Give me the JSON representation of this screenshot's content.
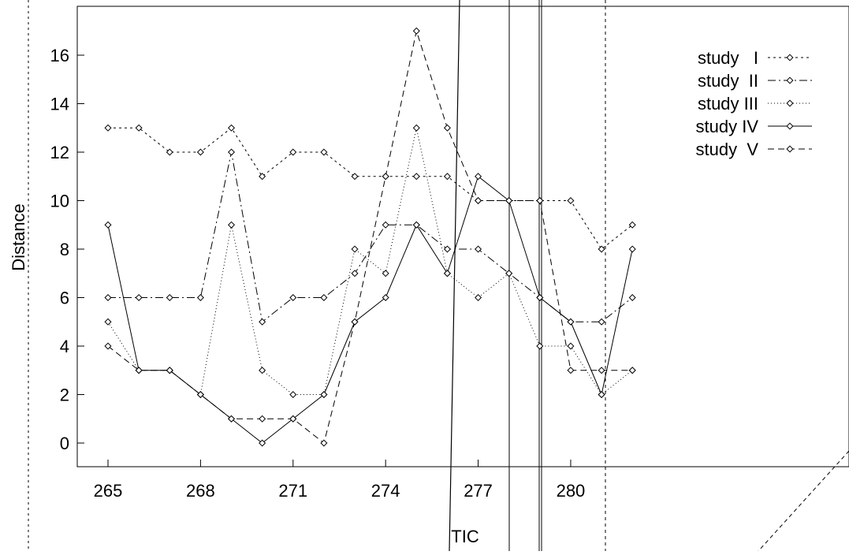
{
  "chart_data": {
    "type": "line",
    "title": "",
    "xlabel": "TIC",
    "ylabel": "Distance",
    "xlim": [
      263.8,
      285.6
    ],
    "ylim": [
      -1,
      18
    ],
    "x_ticks": [
      265,
      268,
      271,
      274,
      277,
      280
    ],
    "y_ticks": [
      0,
      2,
      4,
      6,
      8,
      10,
      12,
      14,
      16
    ],
    "grid": false,
    "legend_position": "top-right",
    "x": [
      265,
      266,
      267,
      268,
      269,
      270,
      271,
      272,
      273,
      274,
      275,
      276,
      277,
      278,
      279,
      280,
      281,
      282
    ],
    "series": [
      {
        "name": "study   I",
        "dash": "3,4",
        "values": [
          13,
          13,
          12,
          12,
          13,
          11,
          12,
          12,
          11,
          11,
          11,
          11,
          10,
          10,
          10,
          10,
          8,
          9
        ]
      },
      {
        "name": "study  II",
        "dash": "10,4,2,4",
        "values": [
          6,
          6,
          6,
          6,
          12,
          5,
          6,
          6,
          7,
          9,
          9,
          8,
          8,
          7,
          6,
          5,
          5,
          6
        ]
      },
      {
        "name": "study III",
        "dash": "1,3",
        "values": [
          5,
          3,
          3,
          2,
          9,
          3,
          2,
          2,
          8,
          7,
          13,
          7,
          6,
          7,
          4,
          4,
          2,
          3
        ]
      },
      {
        "name": "study IV",
        "dash": "",
        "values": [
          9,
          3,
          3,
          2,
          1,
          0,
          1,
          2,
          5,
          6,
          9,
          7,
          11,
          10,
          6,
          5,
          2,
          8
        ]
      },
      {
        "name": "study  V",
        "dash": "8,5",
        "values": [
          4,
          3,
          3,
          2,
          1,
          1,
          1,
          0,
          5,
          11,
          17,
          13,
          10,
          10,
          10,
          3,
          3,
          3
        ]
      }
    ]
  }
}
